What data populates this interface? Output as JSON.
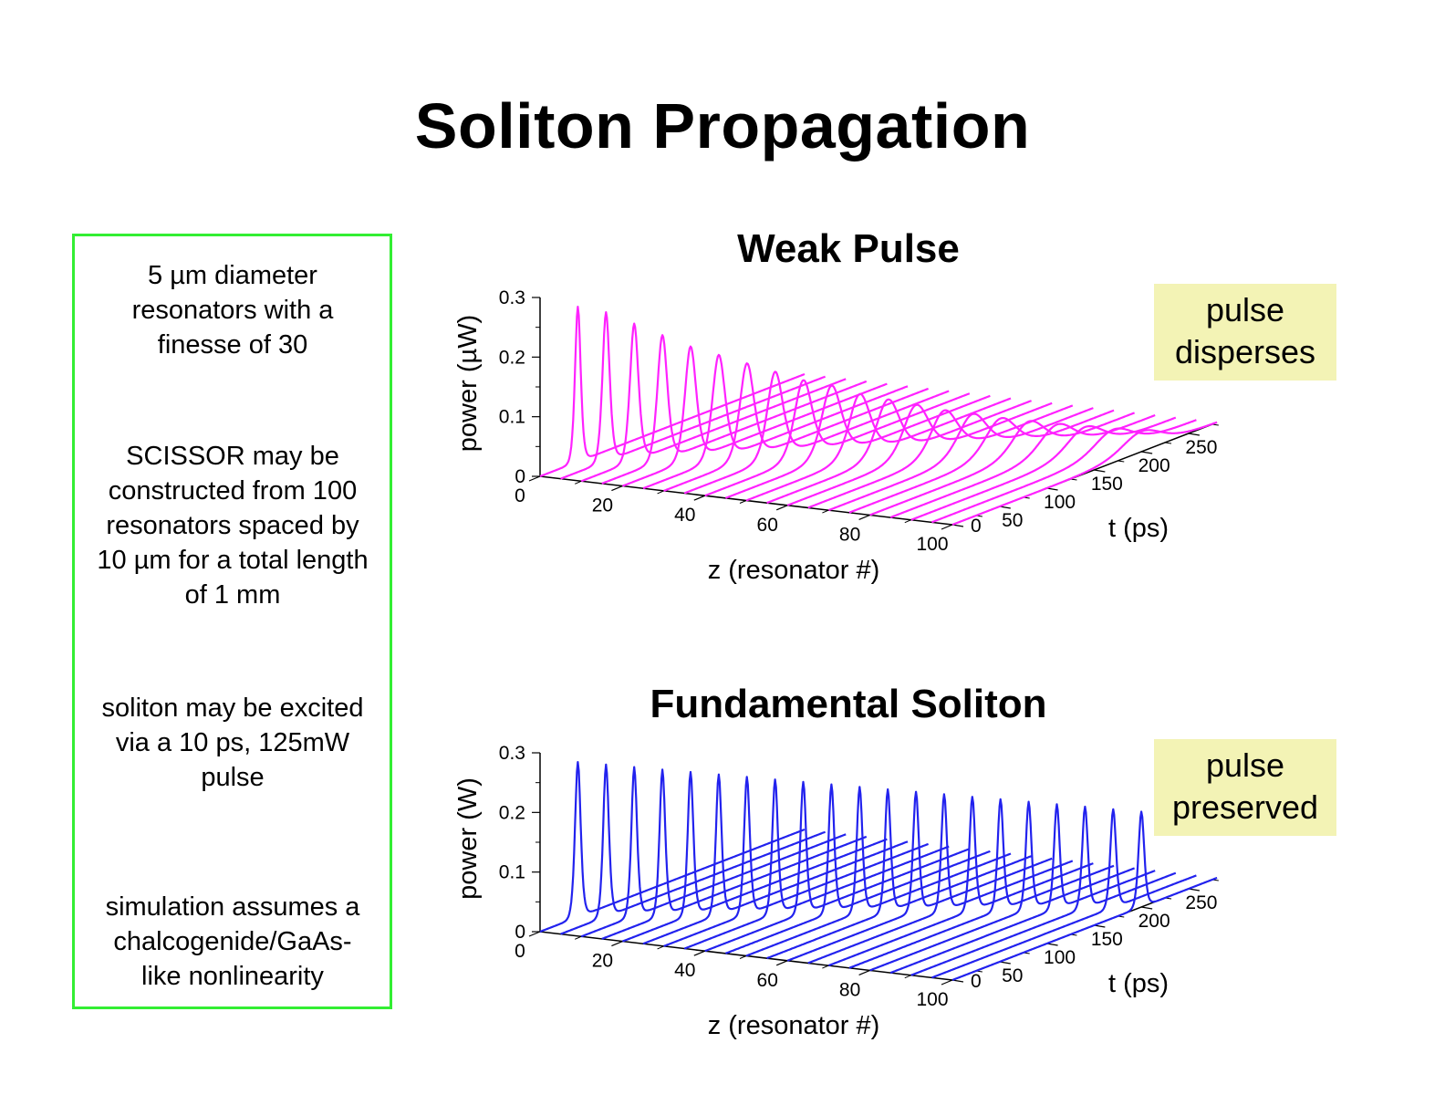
{
  "slide": {
    "title": "Soliton Propagation",
    "notes": [
      "5 µm diameter\nresonators with a\nfinesse of 30",
      "SCISSOR may be\nconstructed from 100\nresonators spaced by\n10 µm for a total length\nof 1 mm",
      "soliton may be excited\nvia a 10 ps, 125mW\npulse",
      "simulation assumes a\nchalcogenide/GaAs-\nlike nonlinearity"
    ],
    "box_border_color": "#33ee33",
    "callout_color": "#f3f3b5"
  },
  "chart_data": [
    {
      "type": "line",
      "title": "Weak Pulse",
      "callout": "pulse\ndisperses",
      "xlabel": "z (resonator #)",
      "ylabel": "t (ps)",
      "zlabel": "power (µW)",
      "x_ticks": [
        "0",
        "20",
        "40",
        "60",
        "80",
        "100"
      ],
      "y_ticks": [
        "0",
        "50",
        "100",
        "150",
        "200",
        "250"
      ],
      "z_ticks": [
        "0",
        "0.1",
        "0.2",
        "0.3"
      ],
      "xlim": [
        0,
        100
      ],
      "ylim": [
        0,
        280
      ],
      "zlim": [
        0,
        0.3
      ],
      "color": "#ff22ff",
      "z_positions": [
        0,
        5,
        10,
        15,
        20,
        25,
        30,
        35,
        40,
        45,
        50,
        55,
        60,
        65,
        70,
        75,
        80,
        85,
        90,
        95,
        100
      ],
      "peak_time": [
        40,
        48,
        56,
        64,
        72,
        80,
        88,
        96,
        104,
        112,
        120,
        128,
        136,
        144,
        152,
        160,
        168,
        176,
        184,
        192,
        200
      ],
      "peak_power": [
        0.26,
        0.25,
        0.23,
        0.21,
        0.19,
        0.175,
        0.16,
        0.145,
        0.13,
        0.12,
        0.105,
        0.095,
        0.085,
        0.075,
        0.068,
        0.06,
        0.054,
        0.048,
        0.043,
        0.038,
        0.034
      ],
      "pulse_width_ps": [
        4,
        5,
        6,
        7,
        8,
        9,
        10,
        11,
        12.5,
        14,
        15,
        16.5,
        18,
        19,
        20.5,
        22,
        23,
        24.5,
        26,
        27,
        28
      ]
    },
    {
      "type": "line",
      "title": "Fundamental Soliton",
      "callout": "pulse\npreserved",
      "xlabel": "z (resonator #)",
      "ylabel": "t (ps)",
      "zlabel": "power (W)",
      "x_ticks": [
        "0",
        "20",
        "40",
        "60",
        "80",
        "100"
      ],
      "y_ticks": [
        "0",
        "50",
        "100",
        "150",
        "200",
        "250"
      ],
      "z_ticks": [
        "0",
        "0.1",
        "0.2",
        "0.3"
      ],
      "xlim": [
        0,
        100
      ],
      "ylim": [
        0,
        280
      ],
      "zlim": [
        0,
        0.3
      ],
      "color": "#2222ee",
      "z_positions": [
        0,
        5,
        10,
        15,
        20,
        25,
        30,
        35,
        40,
        45,
        50,
        55,
        60,
        65,
        70,
        75,
        80,
        85,
        90,
        95,
        100
      ],
      "peak_time": [
        40,
        48,
        56,
        64,
        72,
        80,
        88,
        96,
        104,
        112,
        120,
        128,
        136,
        144,
        152,
        160,
        168,
        176,
        184,
        192,
        200
      ],
      "peak_power": [
        0.26,
        0.255,
        0.25,
        0.245,
        0.24,
        0.235,
        0.23,
        0.225,
        0.22,
        0.215,
        0.21,
        0.205,
        0.2,
        0.195,
        0.19,
        0.185,
        0.18,
        0.175,
        0.17,
        0.165,
        0.16
      ],
      "pulse_width_ps": [
        4,
        4,
        4,
        4,
        4,
        4,
        4,
        4,
        4,
        4,
        4,
        4,
        4,
        4,
        4,
        4,
        4,
        4,
        4,
        4,
        4
      ]
    }
  ]
}
